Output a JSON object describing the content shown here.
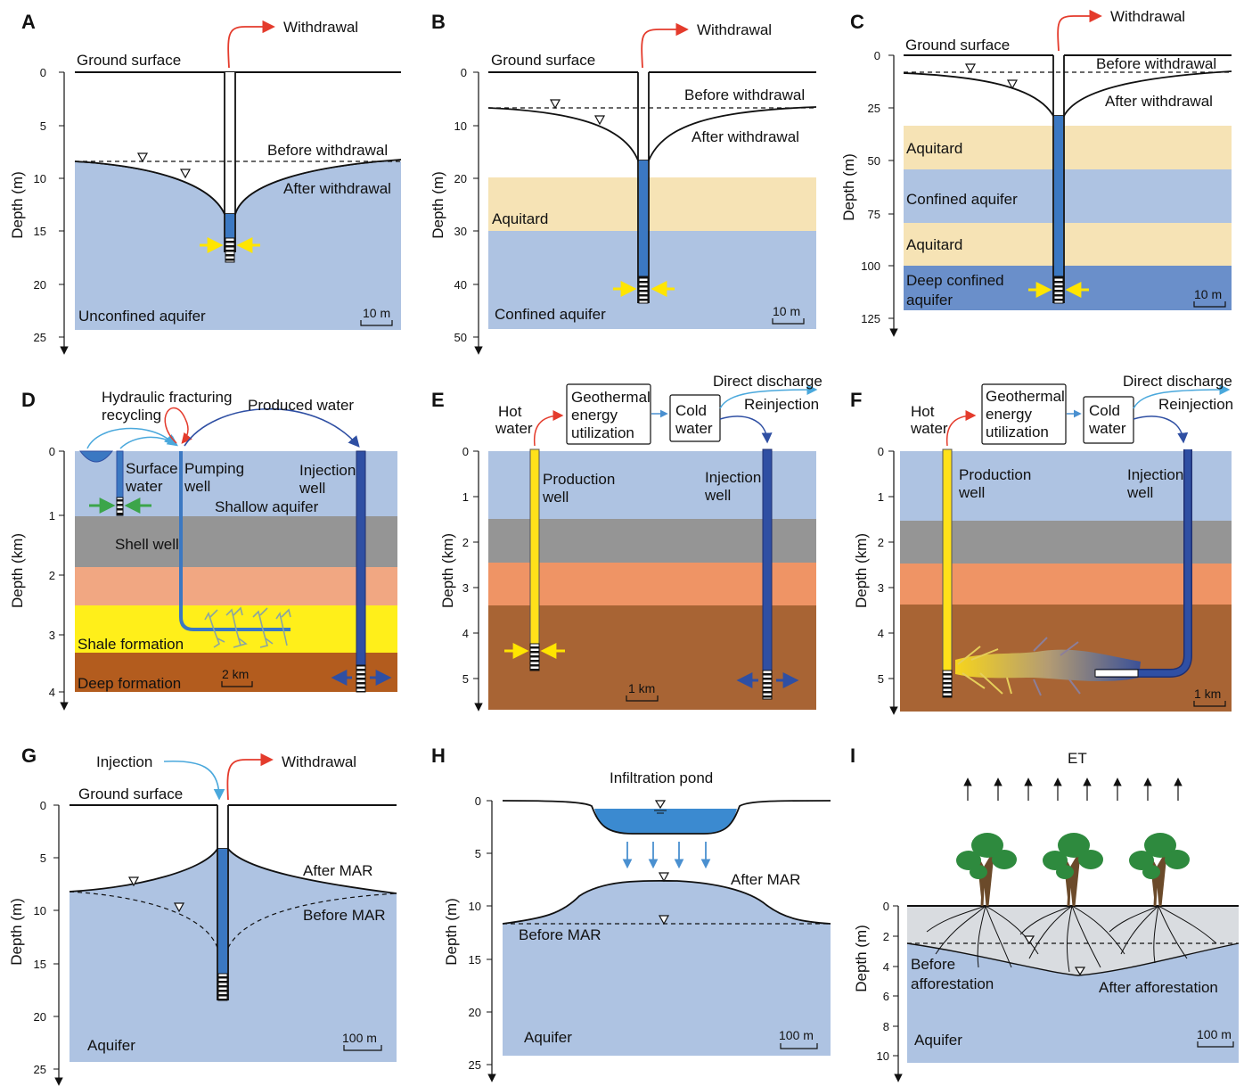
{
  "colors": {
    "aquifer": "#aec3e2",
    "aquitard": "#f6e3b5",
    "deep_aquifer": "#6a8fca",
    "gray_layer": "#959595",
    "orange_layer": "#f1a782",
    "orange_layer_2": "#ef9465",
    "shale": "#ffef1a",
    "deep_brown": "#b35c1e",
    "brown": "#a86434",
    "well_blue": "#3b78c2",
    "injection_blue": "#2f4fa3",
    "production_yellow": "#ffe11a",
    "red_arrow": "#e43b2c",
    "light_blue_arrow": "#4aa8dc",
    "yellow_arrow": "#ffe500",
    "green_arrow": "#3ca54a",
    "tree_green": "#2e8a3e",
    "tree_trunk": "#6b4a2a",
    "soil_gray": "#d9dce0"
  },
  "panels": {
    "A": {
      "letter": "A",
      "axis_label": "Depth (m)",
      "ticks": [
        "0",
        "5",
        "10",
        "15",
        "20",
        "25"
      ],
      "ground_surface": "Ground surface",
      "withdrawal": "Withdrawal",
      "before": "Before withdrawal",
      "after": "After withdrawal",
      "aquifer": "Unconfined aquifer",
      "scale": "10 m"
    },
    "B": {
      "letter": "B",
      "axis_label": "Depth (m)",
      "ticks": [
        "0",
        "10",
        "20",
        "30",
        "40",
        "50"
      ],
      "ground_surface": "Ground surface",
      "withdrawal": "Withdrawal",
      "before": "Before withdrawal",
      "after": "After withdrawal",
      "aquitard": "Aquitard",
      "aquifer": "Confined aquifer",
      "scale": "10 m"
    },
    "C": {
      "letter": "C",
      "axis_label": "Depth (m)",
      "ticks": [
        "0",
        "25",
        "50",
        "75",
        "100",
        "125"
      ],
      "ground_surface": "Ground surface",
      "withdrawal": "Withdrawal",
      "before": "Before withdrawal",
      "after": "After withdrawal",
      "aquitard_1": "Aquitard",
      "confined": "Confined aquifer",
      "aquitard_2": "Aquitard",
      "deep_line1": "Deep confined",
      "deep_line2": "aquifer",
      "scale": "10 m"
    },
    "D": {
      "letter": "D",
      "axis_label": "Depth (km)",
      "ticks": [
        "0",
        "1",
        "2",
        "3",
        "4"
      ],
      "hf_line1": "Hydraulic fracturing",
      "hf_line2": "recycling",
      "produced_water": "Produced water",
      "surface_line1": "Surface",
      "surface_line2": "water",
      "pumping_line1": "Pumping",
      "pumping_line2": "well",
      "injection_line1": "Injection",
      "injection_line2": "well",
      "shallow": "Shallow aquifer",
      "shell_well": "Shell well",
      "shale": "Shale formation",
      "deep": "Deep formation",
      "scale": "2 km"
    },
    "E": {
      "letter": "E",
      "axis_label": "Depth (km)",
      "ticks": [
        "0",
        "1",
        "2",
        "3",
        "4",
        "5"
      ],
      "hot_line1": "Hot",
      "hot_line2": "water",
      "geo_line1": "Geothermal",
      "geo_line2": "energy",
      "geo_line3": "utilization",
      "cold_line1": "Cold",
      "cold_line2": "water",
      "direct": "Direct discharge",
      "reinjection": "Reinjection",
      "production_line1": "Production",
      "production_line2": "well",
      "injection_line1": "Injection",
      "injection_line2": "well",
      "scale": "1 km"
    },
    "F": {
      "letter": "F",
      "axis_label": "Depth (km)",
      "ticks": [
        "0",
        "1",
        "2",
        "3",
        "4",
        "5"
      ],
      "hot_line1": "Hot",
      "hot_line2": "water",
      "geo_line1": "Geothermal",
      "geo_line2": "energy",
      "geo_line3": "utilization",
      "cold_line1": "Cold",
      "cold_line2": "water",
      "direct": "Direct discharge",
      "reinjection": "Reinjection",
      "production_line1": "Production",
      "production_line2": "well",
      "injection_line1": "Injection",
      "injection_line2": "well",
      "scale": "1 km"
    },
    "G": {
      "letter": "G",
      "axis_label": "Depth (m)",
      "ticks": [
        "0",
        "5",
        "10",
        "15",
        "20",
        "25"
      ],
      "injection": "Injection",
      "withdrawal": "Withdrawal",
      "ground_surface": "Ground surface",
      "after": "After MAR",
      "before": "Before MAR",
      "aquifer": "Aquifer",
      "scale": "100 m"
    },
    "H": {
      "letter": "H",
      "axis_label": "Depth (m)",
      "ticks": [
        "0",
        "5",
        "10",
        "15",
        "20",
        "25"
      ],
      "pond": "Infiltration pond",
      "after": "After MAR",
      "before": "Before MAR",
      "aquifer": "Aquifer",
      "scale": "100 m"
    },
    "I": {
      "letter": "I",
      "axis_label": "Depth (m)",
      "ticks": [
        "0",
        "2",
        "4",
        "6",
        "8",
        "10"
      ],
      "et": "ET",
      "before_line1": "Before",
      "before_line2": "afforestation",
      "after": "After afforestation",
      "aquifer": "Aquifer",
      "scale": "100 m"
    }
  }
}
